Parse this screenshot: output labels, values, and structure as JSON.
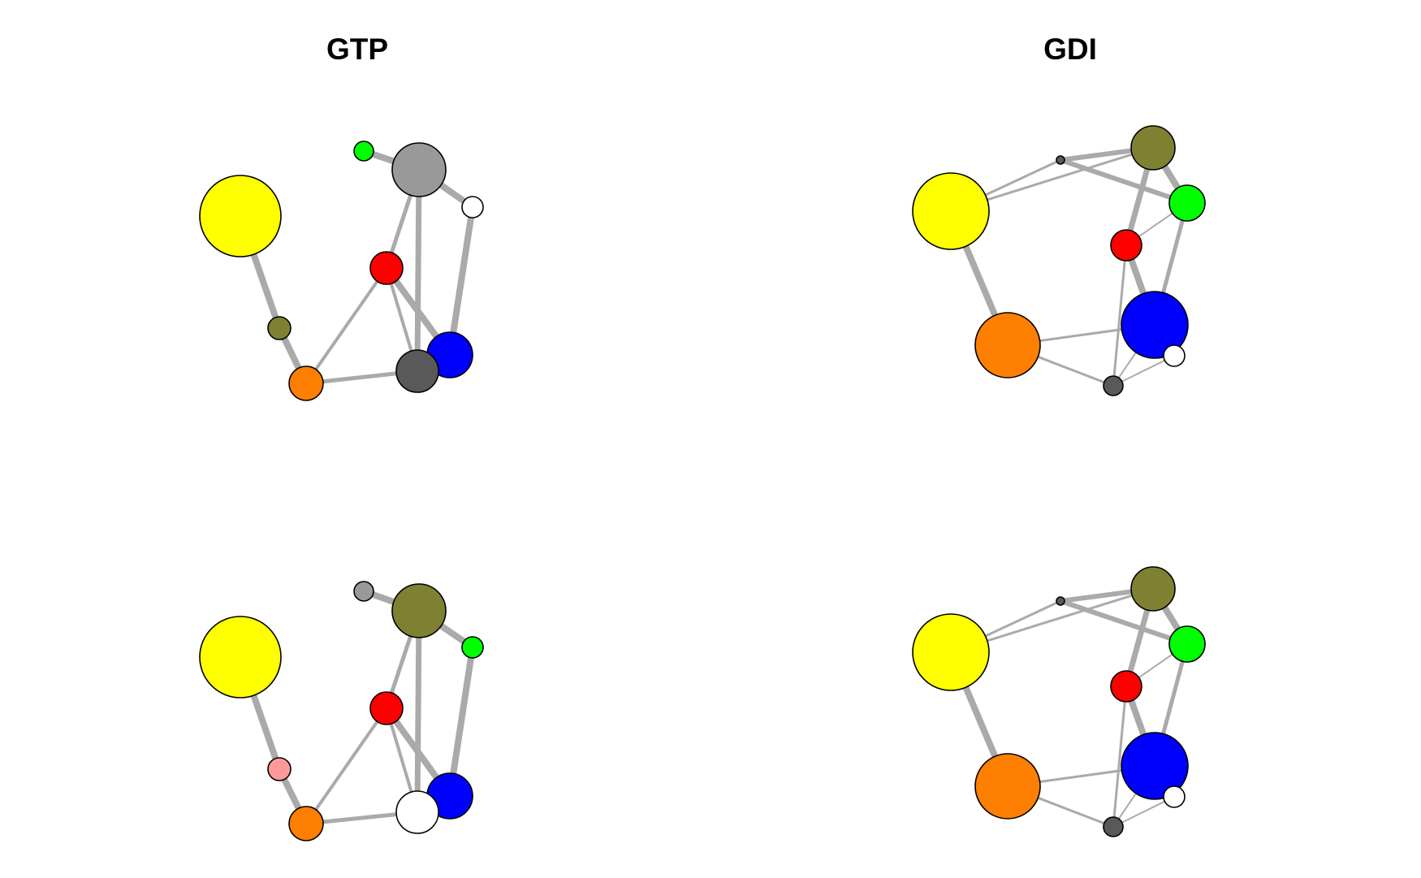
{
  "colors": {
    "edge": "#aaaaaa",
    "node_stroke": "#000000",
    "yellow": "#ffff00",
    "orange": "#ff7f00",
    "olive": "#808033",
    "green": "#00ff00",
    "gray": "#999999",
    "dark_gray": "#595959",
    "white": "#ffffff",
    "red": "#ff0000",
    "blue": "#0000ff",
    "pink": "#ff9999"
  },
  "panels": [
    {
      "id": "top-left",
      "title": "GTP",
      "nodes": [
        {
          "id": "yellow",
          "color": "yellow"
        },
        {
          "id": "olive",
          "color": "olive"
        },
        {
          "id": "orange",
          "color": "orange"
        },
        {
          "id": "green",
          "color": "green"
        },
        {
          "id": "gray",
          "color": "gray"
        },
        {
          "id": "white",
          "color": "white"
        },
        {
          "id": "red",
          "color": "red"
        },
        {
          "id": "blue",
          "color": "blue"
        },
        {
          "id": "darkgray",
          "color": "dark_gray"
        }
      ],
      "edges": [
        [
          "yellow",
          "olive"
        ],
        [
          "olive",
          "orange"
        ],
        [
          "orange",
          "red"
        ],
        [
          "orange",
          "darkgray"
        ],
        [
          "green",
          "gray"
        ],
        [
          "gray",
          "white"
        ],
        [
          "gray",
          "red"
        ],
        [
          "gray",
          "darkgray"
        ],
        [
          "white",
          "blue"
        ],
        [
          "red",
          "blue"
        ],
        [
          "red",
          "darkgray"
        ]
      ]
    },
    {
      "id": "top-right",
      "title": "GDI",
      "nodes": [
        {
          "id": "yellow",
          "color": "yellow"
        },
        {
          "id": "orange",
          "color": "orange"
        },
        {
          "id": "tiny",
          "color": "dark_gray"
        },
        {
          "id": "olive",
          "color": "olive"
        },
        {
          "id": "green",
          "color": "green"
        },
        {
          "id": "red",
          "color": "red"
        },
        {
          "id": "blue",
          "color": "blue"
        },
        {
          "id": "white",
          "color": "white"
        },
        {
          "id": "darkgray",
          "color": "dark_gray"
        }
      ],
      "edges": [
        [
          "yellow",
          "orange"
        ],
        [
          "yellow",
          "tiny"
        ],
        [
          "yellow",
          "olive"
        ],
        [
          "tiny",
          "olive"
        ],
        [
          "tiny",
          "green"
        ],
        [
          "olive",
          "green"
        ],
        [
          "olive",
          "red"
        ],
        [
          "red",
          "green"
        ],
        [
          "red",
          "blue"
        ],
        [
          "red",
          "darkgray"
        ],
        [
          "green",
          "blue"
        ],
        [
          "orange",
          "blue"
        ],
        [
          "orange",
          "darkgray"
        ],
        [
          "darkgray",
          "blue"
        ],
        [
          "darkgray",
          "white"
        ]
      ]
    },
    {
      "id": "bottom-left",
      "title": "",
      "nodes": [
        {
          "id": "yellow",
          "color": "yellow"
        },
        {
          "id": "pink",
          "color": "pink"
        },
        {
          "id": "orange",
          "color": "orange"
        },
        {
          "id": "gray",
          "color": "gray"
        },
        {
          "id": "olive",
          "color": "olive"
        },
        {
          "id": "green",
          "color": "green"
        },
        {
          "id": "red",
          "color": "red"
        },
        {
          "id": "blue",
          "color": "blue"
        },
        {
          "id": "white",
          "color": "white"
        }
      ],
      "edges": [
        [
          "yellow",
          "pink"
        ],
        [
          "pink",
          "orange"
        ],
        [
          "orange",
          "red"
        ],
        [
          "orange",
          "white"
        ],
        [
          "gray",
          "olive"
        ],
        [
          "olive",
          "green"
        ],
        [
          "olive",
          "red"
        ],
        [
          "olive",
          "white"
        ],
        [
          "green",
          "blue"
        ],
        [
          "red",
          "blue"
        ],
        [
          "red",
          "white"
        ]
      ]
    },
    {
      "id": "bottom-right",
      "title": "",
      "nodes": [
        {
          "id": "yellow",
          "color": "yellow"
        },
        {
          "id": "orange",
          "color": "orange"
        },
        {
          "id": "tiny",
          "color": "dark_gray"
        },
        {
          "id": "olive",
          "color": "olive"
        },
        {
          "id": "green",
          "color": "green"
        },
        {
          "id": "red",
          "color": "red"
        },
        {
          "id": "blue",
          "color": "blue"
        },
        {
          "id": "white",
          "color": "white"
        },
        {
          "id": "darkgray",
          "color": "dark_gray"
        }
      ],
      "edges": [
        [
          "yellow",
          "orange"
        ],
        [
          "yellow",
          "tiny"
        ],
        [
          "yellow",
          "olive"
        ],
        [
          "tiny",
          "olive"
        ],
        [
          "tiny",
          "green"
        ],
        [
          "olive",
          "green"
        ],
        [
          "olive",
          "red"
        ],
        [
          "red",
          "green"
        ],
        [
          "red",
          "blue"
        ],
        [
          "red",
          "darkgray"
        ],
        [
          "green",
          "blue"
        ],
        [
          "orange",
          "blue"
        ],
        [
          "orange",
          "darkgray"
        ],
        [
          "darkgray",
          "blue"
        ],
        [
          "darkgray",
          "white"
        ]
      ]
    }
  ]
}
